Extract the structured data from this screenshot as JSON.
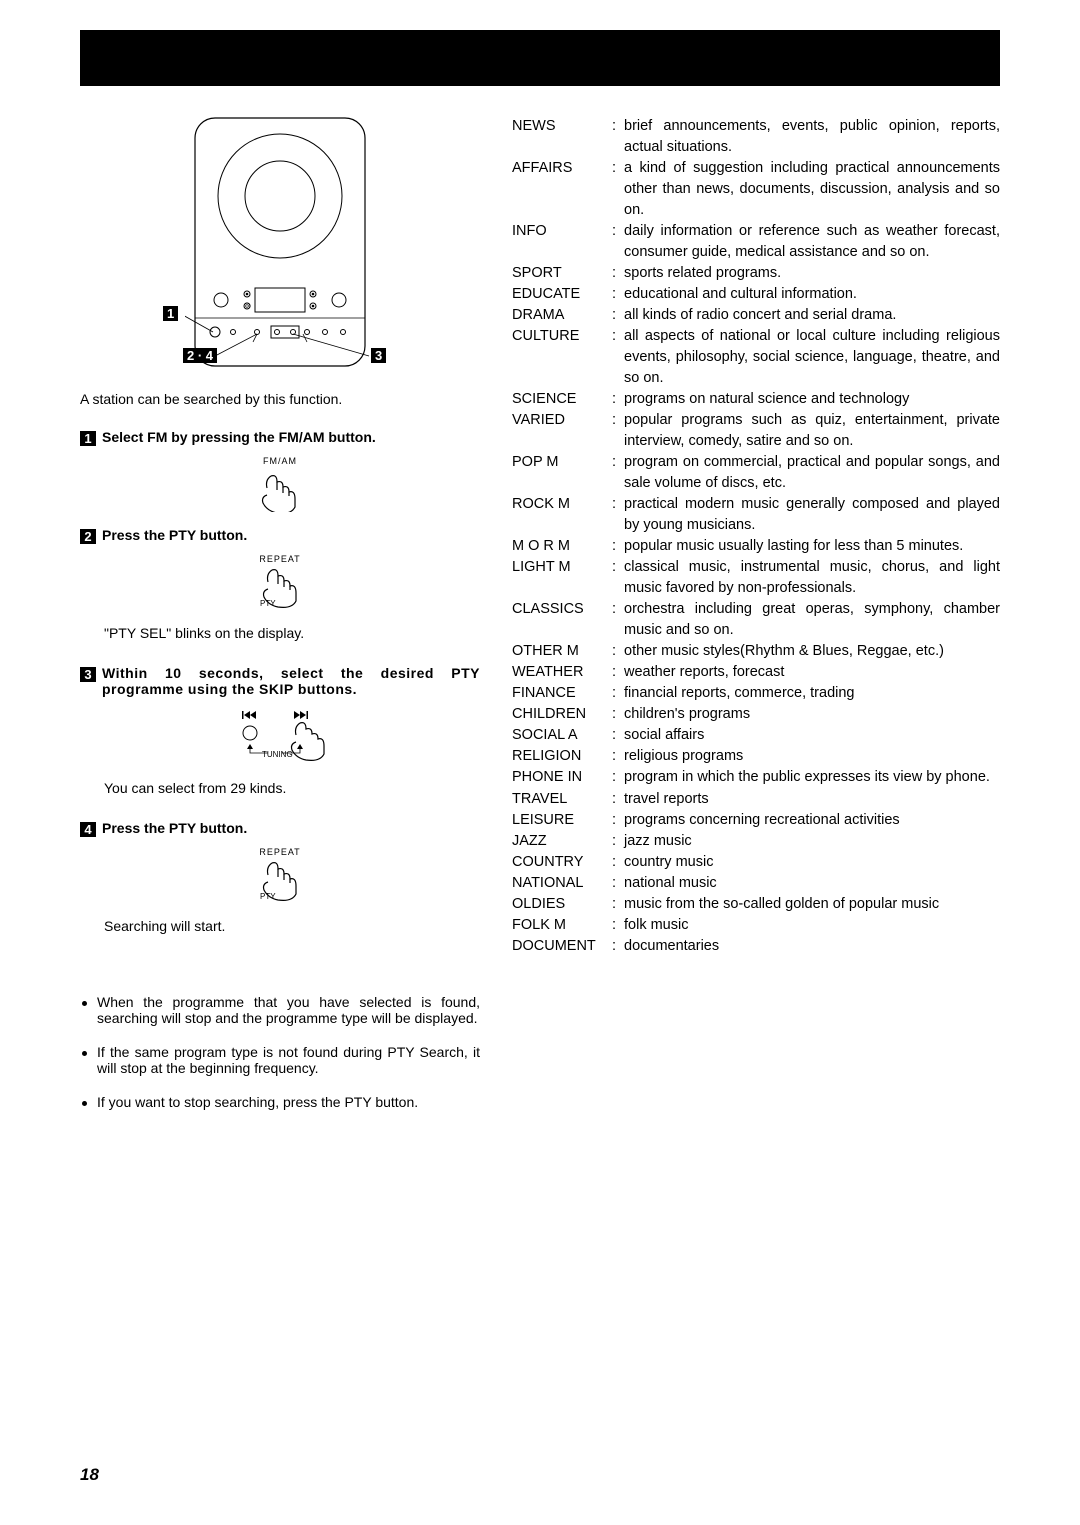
{
  "page_number": "18",
  "banner_color": "#000000",
  "caption_text": "A station can be searched by this function.",
  "steps": [
    {
      "num": "1",
      "title": "Select FM by pressing the FM/AM button.",
      "fig_label": "FM/AM",
      "note": ""
    },
    {
      "num": "2",
      "title": "Press the PTY button.",
      "fig_label": "REPEAT",
      "fig_sub": "PTY",
      "note": "\"PTY SEL\" blinks on the display."
    },
    {
      "num": "3",
      "title": "Within 10 seconds, select the desired PTY programme using the SKIP buttons.",
      "fig_label": "TUNING",
      "note": "You can select from 29 kinds."
    },
    {
      "num": "4",
      "title": "Press the PTY button.",
      "fig_label": "REPEAT",
      "fig_sub": "PTY",
      "note": "Searching will start."
    }
  ],
  "bullets": [
    "When the programme that you have selected is found, searching will stop and the programme type will be displayed.",
    "If the same program type is not found during PTY Search, it will stop at the beginning frequency.",
    "If you want to stop searching, press the PTY button."
  ],
  "callout1": "1",
  "callout24": "2 · 4",
  "callout3": "3",
  "pty": [
    {
      "term": "NEWS",
      "desc": "brief announcements, events, public opinion, reports, actual situations."
    },
    {
      "term": "AFFAIRS",
      "desc": "a kind of suggestion including practical announcements other than news, documents, discussion, analysis and so on."
    },
    {
      "term": "INFO",
      "desc": "daily information or reference such as weather forecast, consumer guide, medical assistance and so on."
    },
    {
      "term": "SPORT",
      "desc": "sports related programs."
    },
    {
      "term": "EDUCATE",
      "desc": "educational and cultural information."
    },
    {
      "term": "DRAMA",
      "desc": "all kinds of radio concert and serial drama."
    },
    {
      "term": "CULTURE",
      "desc": "all aspects of national or local culture including religious events, philosophy, social science, language, theatre, and so on."
    },
    {
      "term": "SCIENCE",
      "desc": "programs on natural science and technology"
    },
    {
      "term": "VARIED",
      "desc": "popular programs such as quiz, entertainment, private interview, comedy, satire and so on."
    },
    {
      "term": "POP M",
      "desc": "program on commercial, practical and popular songs, and sale volume of discs, etc."
    },
    {
      "term": "ROCK M",
      "desc": "practical modern music generally composed and played by young musicians."
    },
    {
      "term": "M O R M",
      "desc": "popular music usually lasting for less than 5 minutes."
    },
    {
      "term": "LIGHT M",
      "desc": "classical music, instrumental music, chorus, and light music favored by non-professionals."
    },
    {
      "term": "CLASSICS",
      "desc": "orchestra including great operas, symphony, chamber music and so on."
    },
    {
      "term": "OTHER M",
      "desc": "other music styles(Rhythm & Blues, Reggae, etc.)"
    },
    {
      "term": "WEATHER",
      "desc": "weather reports, forecast"
    },
    {
      "term": "FINANCE",
      "desc": "financial reports, commerce, trading"
    },
    {
      "term": "CHILDREN",
      "desc": "children's programs"
    },
    {
      "term": "SOCIAL A",
      "desc": "social affairs"
    },
    {
      "term": "RELIGION",
      "desc": "religious programs"
    },
    {
      "term": "PHONE IN",
      "desc": "program in which the public expresses its view by phone."
    },
    {
      "term": "TRAVEL",
      "desc": "travel reports"
    },
    {
      "term": "LEISURE",
      "desc": "programs concerning recreational activities"
    },
    {
      "term": "JAZZ",
      "desc": "jazz music"
    },
    {
      "term": "COUNTRY",
      "desc": "country music"
    },
    {
      "term": "NATIONAL",
      "desc": "national music"
    },
    {
      "term": "OLDIES",
      "desc": "music from the so-called golden of popular music"
    },
    {
      "term": "FOLK M",
      "desc": "folk music"
    },
    {
      "term": "DOCUMENT",
      "desc": "documentaries"
    }
  ]
}
